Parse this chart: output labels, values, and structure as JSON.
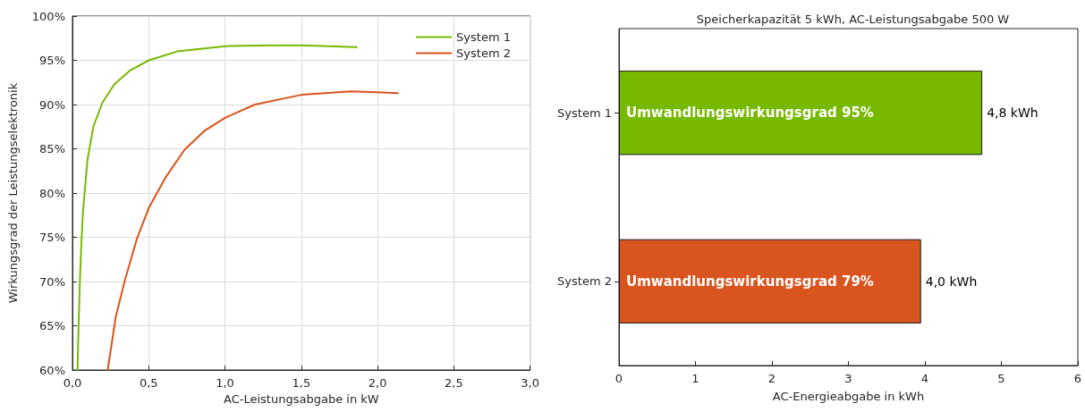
{
  "chart_data": [
    {
      "type": "line",
      "xlabel": "AC-Leistungsabgabe in kW",
      "ylabel": "Wirkungsgrad der Leistungselektronik",
      "legend": "top right",
      "grid": true,
      "xlim": [
        0,
        3
      ],
      "xticks": [
        {
          "value": 0,
          "label": "0,0"
        },
        {
          "value": 0.5,
          "label": "0,5"
        },
        {
          "value": 1,
          "label": "1,0"
        },
        {
          "value": 1.5,
          "label": "1,5"
        },
        {
          "value": 2,
          "label": "2,0"
        },
        {
          "value": 2.5,
          "label": "2,5"
        },
        {
          "value": 3,
          "label": "3,0"
        }
      ],
      "ylim": [
        60,
        100
      ],
      "yticks": [
        {
          "value": 60,
          "label": "60%"
        },
        {
          "value": 65,
          "label": "65%"
        },
        {
          "value": 70,
          "label": "70%"
        },
        {
          "value": 75,
          "label": "75%"
        },
        {
          "value": 80,
          "label": "80%"
        },
        {
          "value": 85,
          "label": "85%"
        },
        {
          "value": 90,
          "label": "90%"
        },
        {
          "value": 95,
          "label": "95%"
        },
        {
          "value": 100,
          "label": "100%"
        }
      ],
      "series": [
        {
          "name": "System 1",
          "color": "#77b900",
          "x": [
            0.033,
            0.039,
            0.049,
            0.059,
            0.069,
            0.098,
            0.137,
            0.196,
            0.275,
            0.373,
            0.5,
            0.686,
            1.0,
            1.31,
            1.51,
            1.863
          ],
          "values": [
            60,
            64.3,
            70.1,
            74.5,
            77.9,
            83.7,
            87.5,
            90.2,
            92.3,
            93.8,
            95.0,
            96.0,
            96.6,
            96.7,
            96.7,
            96.5
          ]
        },
        {
          "name": "System 2",
          "color": "#d95319",
          "x": [
            0.231,
            0.284,
            0.343,
            0.422,
            0.5,
            0.608,
            0.735,
            0.863,
            1.0,
            1.196,
            1.5,
            1.824,
            2.0,
            2.133
          ],
          "values": [
            60,
            66,
            70.1,
            74.8,
            78.3,
            81.7,
            84.9,
            87.0,
            88.5,
            90.0,
            91.1,
            91.5,
            91.4,
            91.3
          ]
        }
      ]
    },
    {
      "type": "bar",
      "orientation": "horizontal",
      "title": "Speicherkapazität 5 kWh, AC-Leistungsabgabe 500 W",
      "xlabel": "AC-Energieabgabe in kWh",
      "categories": [
        "System 1",
        "System 2"
      ],
      "values": [
        4.75,
        3.95
      ],
      "colors": [
        "#77b900",
        "#d9541e"
      ],
      "value_labels": [
        "4,8 kWh",
        "4,0 kWh"
      ],
      "xlim": [
        0,
        6
      ],
      "xticks": [
        0,
        1,
        2,
        3,
        4,
        5,
        6
      ],
      "annotations": [
        {
          "text": "Umwandlungswirkungsgrad 95%",
          "x": 0,
          "y": "System 1"
        },
        {
          "text": "Umwandlungswirkungsgrad 79%",
          "x": 0,
          "y": "System 2"
        }
      ]
    }
  ]
}
